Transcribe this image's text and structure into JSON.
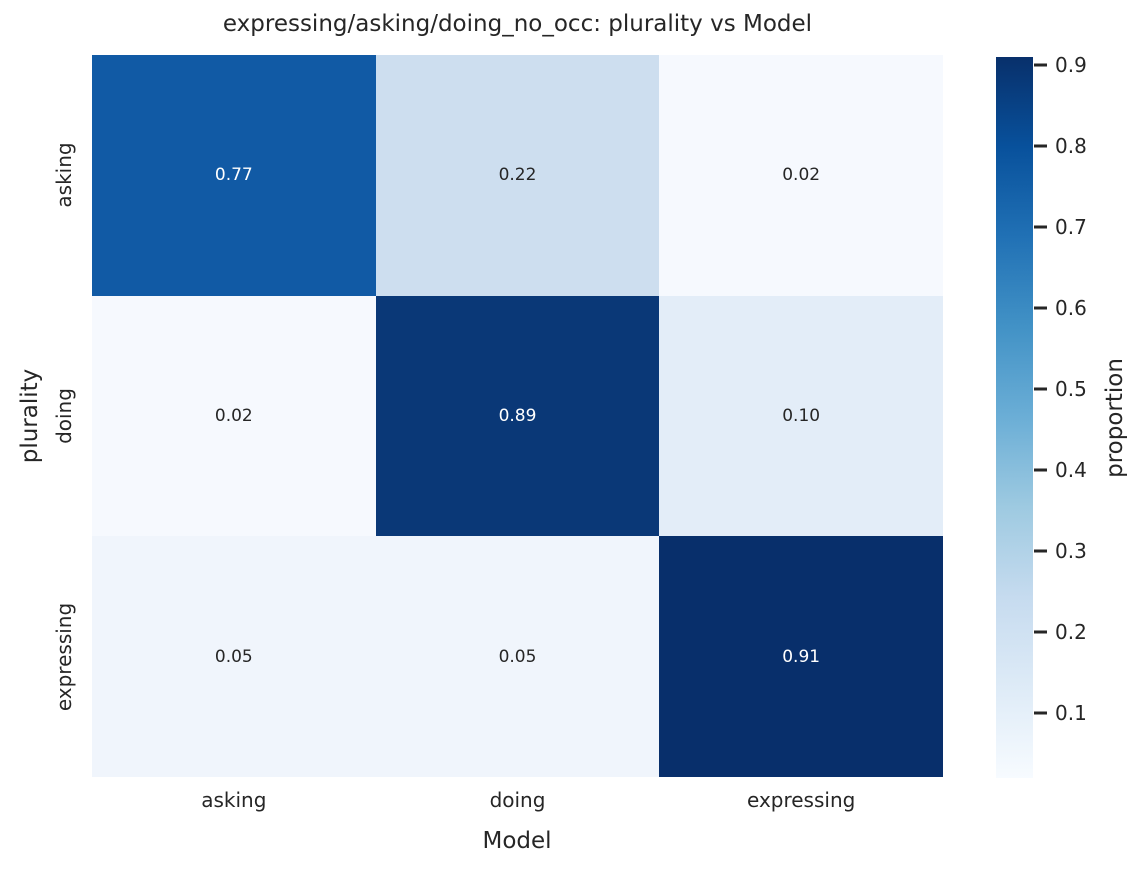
{
  "chart_data": {
    "type": "heatmap",
    "title": "expressing/asking/doing_no_occ: plurality vs Model",
    "xlabel": "Model",
    "ylabel": "plurality",
    "x_categories": [
      "asking",
      "doing",
      "expressing"
    ],
    "y_categories": [
      "asking",
      "doing",
      "expressing"
    ],
    "values": [
      [
        0.77,
        0.22,
        0.02
      ],
      [
        0.02,
        0.89,
        0.1
      ],
      [
        0.05,
        0.05,
        0.91
      ]
    ],
    "cell_labels": [
      [
        "0.77",
        "0.22",
        "0.02"
      ],
      [
        "0.02",
        "0.89",
        "0.10"
      ],
      [
        "0.05",
        "0.05",
        "0.91"
      ]
    ],
    "cell_colors": [
      [
        "#115aa5",
        "#cddeef",
        "#f6f9fe"
      ],
      [
        "#f6f9fe",
        "#0a3877",
        "#e3edf8"
      ],
      [
        "#f0f5fc",
        "#f0f5fc",
        "#082f6b"
      ]
    ],
    "cell_text_colors": [
      [
        "#ffffff",
        "#262626",
        "#262626"
      ],
      [
        "#262626",
        "#ffffff",
        "#262626"
      ],
      [
        "#262626",
        "#262626",
        "#ffffff"
      ]
    ],
    "colormap": "Blues",
    "grid": false,
    "text_color": "#262626",
    "colorbar": {
      "label": "proportion",
      "position": "right",
      "vmin": 0.02,
      "vmax": 0.91,
      "tick_values": [
        0.9,
        0.8,
        0.7,
        0.6,
        0.5,
        0.4,
        0.3,
        0.2,
        0.1
      ],
      "tick_labels": [
        "0.9",
        "0.8",
        "0.7",
        "0.6",
        "0.5",
        "0.4",
        "0.3",
        "0.2",
        "0.1"
      ],
      "gradient_top_to_bottom": [
        "#08306b",
        "#08519c",
        "#2171b5",
        "#4292c6",
        "#6baed6",
        "#9ecae1",
        "#c6dbef",
        "#deebf7",
        "#f7fbff"
      ]
    }
  }
}
